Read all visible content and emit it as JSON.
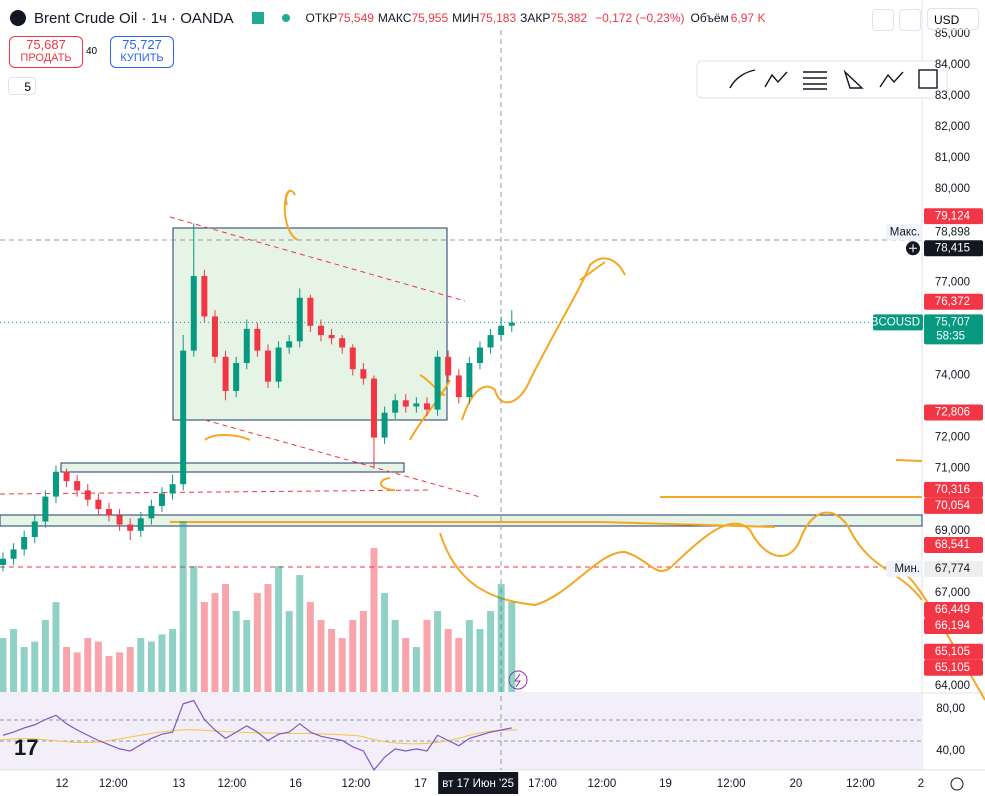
{
  "header": {
    "title": "Brent Crude Oil · 1ч · OANDA",
    "ohlc": [
      {
        "label": "ОТКР",
        "value": "75,549"
      },
      {
        "label": "МАКС",
        "value": "75,955"
      },
      {
        "label": "МИН",
        "value": "75,183"
      },
      {
        "label": "ЗАКР",
        "value": "75,382"
      }
    ],
    "change": "−0,172 (−0,23%)",
    "volume_label": "Объём",
    "volume_value": "6,97 K",
    "currency": "USD"
  },
  "trade": {
    "sell_price": "75,687",
    "sell_label": "ПРОДАТЬ",
    "spread": "40",
    "buy_price": "75,727",
    "buy_label": "КУПИТЬ"
  },
  "order_qty": "5",
  "chart_data": {
    "type": "candlestick",
    "open": [
      67.9,
      68.1,
      68.4,
      68.8,
      69.3,
      70.1,
      70.9,
      70.6,
      70.3,
      70.0,
      69.7,
      69.5,
      69.2,
      69.0,
      69.4,
      69.8,
      70.2,
      70.5,
      74.8,
      77.2,
      75.9,
      74.6,
      73.5,
      74.4,
      75.5,
      74.8,
      73.8,
      74.9,
      75.1,
      76.5,
      75.6,
      75.3,
      75.2,
      74.9,
      74.2,
      73.9,
      72.0,
      72.8,
      73.2,
      73.0,
      73.1,
      72.9,
      74.6,
      74.0,
      73.3,
      74.4,
      74.9,
      75.3,
      75.6
    ],
    "high": [
      68.3,
      68.6,
      69.0,
      69.5,
      70.3,
      71.1,
      71.0,
      70.8,
      70.5,
      70.2,
      69.9,
      69.7,
      69.4,
      69.6,
      70.0,
      70.4,
      70.8,
      75.3,
      78.9,
      77.4,
      76.1,
      74.8,
      74.6,
      75.8,
      75.7,
      75.0,
      75.1,
      75.3,
      76.8,
      76.6,
      75.8,
      75.5,
      75.3,
      75.0,
      74.4,
      74.0,
      73.0,
      73.4,
      73.4,
      73.3,
      73.3,
      74.8,
      74.8,
      74.2,
      74.6,
      75.1,
      75.5,
      75.9,
      76.1
    ],
    "low": [
      67.7,
      67.9,
      68.2,
      68.6,
      69.1,
      69.9,
      70.4,
      70.1,
      69.8,
      69.5,
      69.3,
      69.0,
      68.7,
      68.8,
      69.2,
      69.6,
      70.0,
      70.3,
      74.6,
      75.7,
      74.4,
      73.2,
      73.3,
      74.2,
      74.6,
      73.6,
      73.6,
      74.7,
      74.9,
      75.4,
      75.1,
      75.0,
      74.7,
      74.0,
      73.7,
      71.0,
      71.8,
      72.6,
      72.8,
      72.8,
      72.7,
      72.7,
      73.8,
      73.1,
      73.1,
      74.2,
      74.7,
      75.1,
      75.4
    ],
    "close": [
      68.1,
      68.4,
      68.8,
      69.3,
      70.1,
      70.9,
      70.6,
      70.3,
      70.0,
      69.7,
      69.5,
      69.2,
      69.0,
      69.4,
      69.8,
      70.2,
      70.5,
      74.8,
      77.2,
      75.9,
      74.6,
      73.5,
      74.4,
      75.5,
      74.8,
      73.8,
      74.9,
      75.1,
      76.5,
      75.6,
      75.3,
      75.2,
      74.9,
      74.2,
      73.9,
      72.0,
      72.8,
      73.2,
      73.0,
      73.1,
      72.9,
      74.6,
      74.0,
      73.3,
      74.4,
      74.9,
      75.3,
      75.6,
      75.7
    ],
    "volume": [
      30,
      35,
      25,
      28,
      40,
      50,
      25,
      22,
      30,
      28,
      20,
      22,
      25,
      30,
      28,
      32,
      35,
      95,
      70,
      50,
      55,
      60,
      45,
      40,
      55,
      60,
      70,
      45,
      65,
      50,
      40,
      35,
      30,
      40,
      45,
      80,
      55,
      40,
      30,
      25,
      40,
      45,
      35,
      30,
      40,
      35,
      45,
      60,
      50
    ],
    "volume_ylim": [
      0,
      368
    ],
    "up_color": "#089981",
    "down_color": "#f23645",
    "xlim": [
      -0.28,
      86.7
    ],
    "xticks": [
      {
        "value": 5.57,
        "label": "12"
      },
      {
        "value": 10.4,
        "label": "12:00"
      },
      {
        "value": 16.6,
        "label": "13"
      },
      {
        "value": 21.6,
        "label": "12:00"
      },
      {
        "value": 27.6,
        "label": "16"
      },
      {
        "value": 33.3,
        "label": "12:00"
      },
      {
        "value": 39.4,
        "label": "17"
      },
      {
        "value": 50.9,
        "label": "17:00"
      },
      {
        "value": 56.5,
        "label": "12:00"
      },
      {
        "value": 62.5,
        "label": "19"
      },
      {
        "value": 68.7,
        "label": "12:00"
      },
      {
        "value": 74.8,
        "label": "20"
      },
      {
        "value": 80.9,
        "label": "12:00"
      },
      {
        "value": 86.6,
        "label": "2"
      }
    ],
    "cursor": {
      "value": 47,
      "label": "вт 17 Июн '25"
    },
    "ylim": [
      63.81,
      85.12
    ],
    "yticks": [
      {
        "value": 85,
        "label": "85,000"
      },
      {
        "value": 84,
        "label": "84,000"
      },
      {
        "value": 83,
        "label": "83,000"
      },
      {
        "value": 82,
        "label": "82,000"
      },
      {
        "value": 81,
        "label": "81,000"
      },
      {
        "value": 80,
        "label": "80,000"
      },
      {
        "value": 77,
        "label": "77,000"
      },
      {
        "value": 74,
        "label": "74,000"
      },
      {
        "value": 72,
        "label": "72,000"
      },
      {
        "value": 71,
        "label": "71,000"
      },
      {
        "value": 69,
        "label": "69,000"
      },
      {
        "value": 67,
        "label": "67,000"
      },
      {
        "value": 64,
        "label": "64,000"
      }
    ],
    "price_tags": [
      {
        "value": 79.124,
        "label": "79,124",
        "color": "#f23645"
      },
      {
        "value": 78.898,
        "label": "78,898",
        "color": "#ffffff",
        "name": "Макс."
      },
      {
        "value": 78.415,
        "label": "78,415",
        "color": "#131722"
      },
      {
        "value": 76.372,
        "label": "76,372",
        "color": "#f23645"
      },
      {
        "value": 75.707,
        "label": "75,707",
        "color": "#089981",
        "name": "BCOUSD",
        "timer": "58:35"
      },
      {
        "value": 72.806,
        "label": "72,806",
        "color": "#f23645"
      },
      {
        "value": 70.316,
        "label": "70,316",
        "color": "#f23645"
      },
      {
        "value": 70.054,
        "label": "70,054",
        "color": "#f23645"
      },
      {
        "value": 68.541,
        "label": "68,541",
        "color": "#f23645"
      },
      {
        "value": 67.774,
        "label": "67,774",
        "color": "#eeeeee",
        "name": "Мин."
      },
      {
        "value": 66.449,
        "label": "66,449",
        "color": "#f23645"
      },
      {
        "value": 66.194,
        "label": "66,194",
        "color": "#f23645"
      },
      {
        "value": 65.105,
        "label": "65,105",
        "color": "#f23645"
      },
      {
        "value": 65.105,
        "label": "65,105",
        "color": "#f23645"
      }
    ],
    "rsi": {
      "color": "#7e57c2",
      "values": [
        55,
        58,
        62,
        65,
        70,
        74,
        66,
        60,
        55,
        50,
        46,
        42,
        40,
        46,
        52,
        56,
        58,
        85,
        88,
        70,
        60,
        52,
        58,
        64,
        58,
        50,
        56,
        58,
        66,
        58,
        54,
        52,
        50,
        44,
        40,
        22,
        34,
        42,
        40,
        42,
        40,
        55,
        50,
        45,
        52,
        55,
        58,
        60,
        62
      ],
      "ylim": [
        21.9,
        94.3
      ],
      "yticks": [
        {
          "value": 80,
          "label": "80,00"
        },
        {
          "value": 40,
          "label": "40,00"
        }
      ]
    }
  }
}
